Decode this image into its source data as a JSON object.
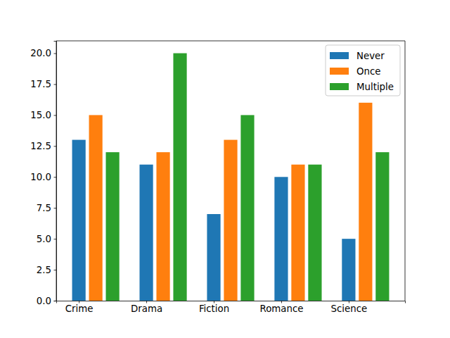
{
  "chart_data": {
    "type": "bar",
    "categories": [
      "Crime",
      "Drama",
      "Fiction",
      "Romance",
      "Science"
    ],
    "series": [
      {
        "name": "Never",
        "color": "#1f77b4",
        "values": [
          13,
          11,
          7,
          10,
          5
        ]
      },
      {
        "name": "Once",
        "color": "#ff7f0e",
        "values": [
          15,
          12,
          13,
          11,
          16
        ]
      },
      {
        "name": "Multiple",
        "color": "#2ca02c",
        "values": [
          12,
          20,
          15,
          11,
          12
        ]
      }
    ],
    "ylim": [
      0,
      21
    ],
    "yticks": [
      {
        "value": 0,
        "label": "0.0"
      },
      2.5,
      {
        "value": 5,
        "label": "5.0"
      },
      7.5,
      {
        "value": 10,
        "label": "10.0"
      },
      12.5,
      {
        "value": 15,
        "label": "15.0"
      },
      17.5,
      {
        "value": 20,
        "label": "20.0"
      }
    ],
    "grid": false,
    "legend": "upper right"
  }
}
